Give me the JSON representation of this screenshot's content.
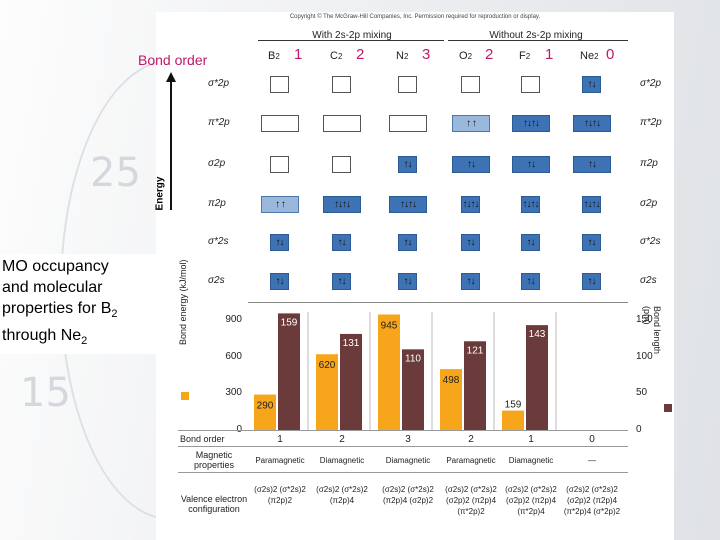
{
  "header": {
    "copyright": "Copyright © The McGraw-Hill Companies, Inc. Permission required for reproduction or display.",
    "bond_order_label": "Bond order",
    "with_mixing": "With 2s-2p mixing",
    "without_mixing": "Without 2s-2p mixing",
    "energy_label": "Energy"
  },
  "caption": {
    "line1": "MO occupancy",
    "line2": "and molecular",
    "line3": "properties for B",
    "sub3": "2",
    "line4": "through Ne",
    "sub4": "2"
  },
  "molecules": [
    {
      "sym": "B",
      "n": "2",
      "bo": "1",
      "energy": 290,
      "length": 159,
      "mag": "Paramagnetic",
      "bo_row": "1",
      "config": [
        "(σ2s)2 (σ*2s)2",
        "(π2p)2"
      ]
    },
    {
      "sym": "C",
      "n": "2",
      "bo": "2",
      "energy": 620,
      "length": 131,
      "mag": "Diamagnetic",
      "bo_row": "2",
      "config": [
        "(σ2s)2 (σ*2s)2",
        "(π2p)4"
      ]
    },
    {
      "sym": "N",
      "n": "2",
      "bo": "3",
      "energy": 945,
      "length": 110,
      "mag": "Diamagnetic",
      "bo_row": "3",
      "config": [
        "(σ2s)2 (σ*2s)2",
        "(π2p)4 (σ2p)2"
      ]
    },
    {
      "sym": "O",
      "n": "2",
      "bo": "2",
      "energy": 498,
      "length": 121,
      "mag": "Paramagnetic",
      "bo_row": "2",
      "config": [
        "(σ2s)2 (σ*2s)2",
        "(σ2p)2 (π2p)4",
        "(π*2p)2"
      ]
    },
    {
      "sym": "F",
      "n": "2",
      "bo": "1",
      "energy": 159,
      "length": 143,
      "mag": "Diamagnetic",
      "bo_row": "1",
      "config": [
        "(σ2s)2 (σ*2s)2",
        "(σ2p)2 (π2p)4",
        "(π*2p)4"
      ]
    },
    {
      "sym": "Ne",
      "n": "2",
      "bo": "0",
      "energy": null,
      "length": null,
      "mag": "—",
      "bo_row": "0",
      "config": [
        "(σ2s)2 (σ*2s)2",
        "(σ2p)2 (π2p)4",
        "(π*2p)4 (σ*2p)2"
      ]
    }
  ],
  "orbital_labels_left": [
    "σ*2p",
    "π*2p",
    "σ2p",
    "π2p",
    "σ*2s",
    "σ2s"
  ],
  "orbital_labels_right": [
    "σ*2p",
    "π*2p",
    "π2p",
    "σ2p",
    "σ*2s",
    "σ2s"
  ],
  "occupancy_rows": [
    [
      "",
      "",
      "",
      "",
      "",
      "↑↓"
    ],
    [
      "",
      "",
      "",
      "↑ ↑",
      "↑↓↑↓",
      "↑↓↑↓"
    ],
    [
      "",
      "",
      "↑↓",
      "↑↓",
      "↑↓",
      "↑↓"
    ],
    [
      "↑ ↑",
      "↑↓↑↓",
      "↑↓↑↓",
      "↑↓↑↓",
      "↑↓↑↓",
      "↑↓↑↓"
    ],
    [
      "↑↓",
      "↑↓",
      "↑↓",
      "↑↓",
      "↑↓",
      "↑↓"
    ],
    [
      "↑↓",
      "↑↓",
      "↑↓",
      "↑↓",
      "↑↓",
      "↑↓"
    ]
  ],
  "table_labels": {
    "bond_order": "Bond order",
    "magnetic": "Magnetic properties",
    "valence": "Valence electron configuration"
  },
  "chart_data": {
    "type": "bar",
    "categories": [
      "B2",
      "C2",
      "N2",
      "O2",
      "F2",
      "Ne2"
    ],
    "series": [
      {
        "name": "Bond energy",
        "values": [
          290,
          620,
          945,
          498,
          159,
          null
        ],
        "color": "#f7a51b"
      },
      {
        "name": "Bond length",
        "values": [
          159,
          131,
          110,
          121,
          143,
          null
        ],
        "color": "#6b3a3a"
      }
    ],
    "ylabel_left": "Bond energy (kJ/mol)",
    "ylabel_right": "Bond length (pm)",
    "ylim_left": [
      0,
      900
    ],
    "ylim_right": [
      0,
      150
    ],
    "yticks_left": [
      0,
      300,
      600,
      900
    ],
    "yticks_right": [
      0,
      50,
      100,
      150
    ]
  },
  "colors": {
    "accent": "#c0186a",
    "orbital": "#3d72b4",
    "energy_bar": "#f7a51b",
    "length_bar": "#6b3a3a"
  }
}
